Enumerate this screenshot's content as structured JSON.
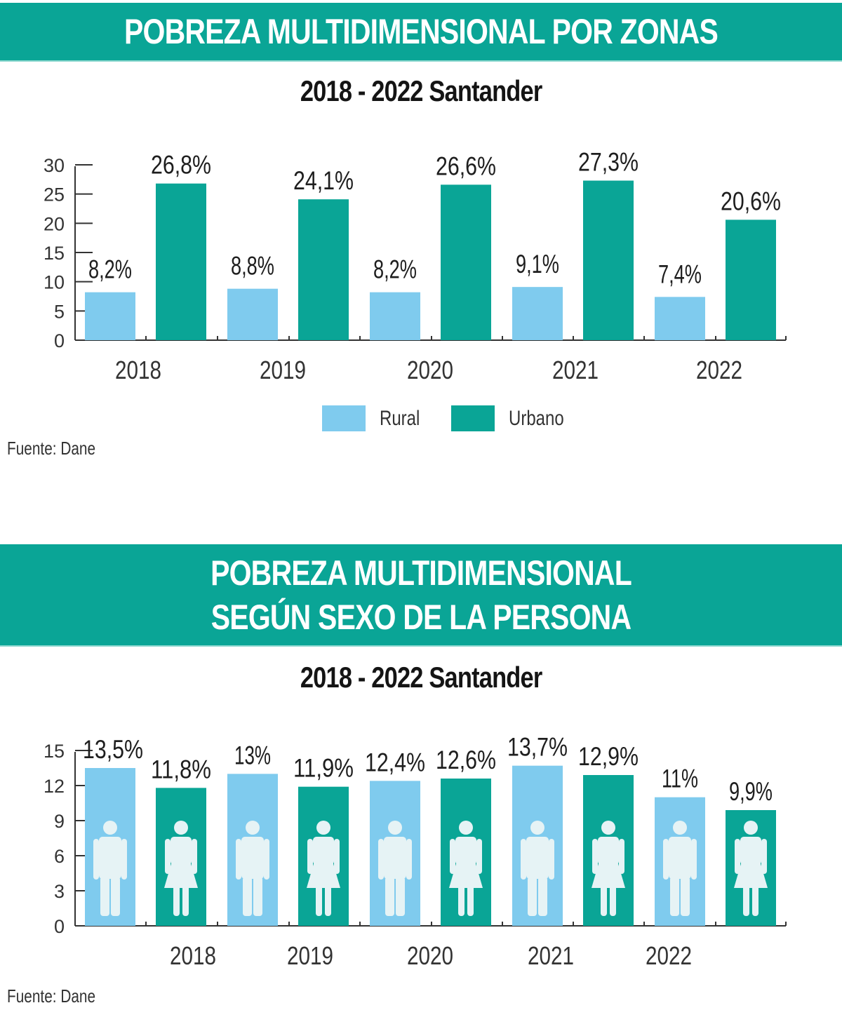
{
  "colors": {
    "banner": "#0aa596",
    "rural": "#7fcbee",
    "urbano": "#0aa596",
    "hombre": "#7fcbee",
    "mujer": "#0aa596",
    "icon_fill": "#e6f3f5",
    "axis": "#333333"
  },
  "section1": {
    "title": "POBREZA MULTIDIMENSIONAL POR ZONAS",
    "subtitle": "2018 - 2022 Santander",
    "source": "Fuente: Dane"
  },
  "section2": {
    "title_line1": "POBREZA MULTIDIMENSIONAL",
    "title_line2": "SEGÚN SEXO DE LA PERSONA",
    "subtitle": "2018 - 2022 Santander",
    "source": "Fuente: Dane"
  },
  "chart_data": [
    {
      "type": "bar",
      "title": "POBREZA MULTIDIMENSIONAL POR ZONAS",
      "subtitle": "2018 - 2022 Santander",
      "xlabel": "",
      "ylabel": "",
      "categories": [
        "2018",
        "2019",
        "2020",
        "2021",
        "2022"
      ],
      "ylim": [
        0,
        30
      ],
      "yticks": [
        "0",
        "5",
        "10",
        "15",
        "20",
        "25",
        "30"
      ],
      "grid": false,
      "legend_position": "bottom-center",
      "series": [
        {
          "name": "Rural",
          "values": [
            8.2,
            8.8,
            8.2,
            9.1,
            7.4
          ],
          "labels": [
            "8,2%",
            "8,8%",
            "8,2%",
            "9,1%",
            "7,4%"
          ]
        },
        {
          "name": "Urbano",
          "values": [
            26.8,
            24.1,
            26.6,
            27.3,
            20.6
          ],
          "labels": [
            "26,8%",
            "24,1%",
            "26,6%",
            "27,3%",
            "20,6%"
          ]
        }
      ]
    },
    {
      "type": "bar",
      "title": "POBREZA MULTIDIMENSIONAL SEGÚN SEXO DE LA PERSONA",
      "subtitle": "2018 - 2022 Santander",
      "xlabel": "",
      "ylabel": "",
      "categories": [
        "2018",
        "2019",
        "2020",
        "2021",
        "2022"
      ],
      "ylim": [
        0,
        15
      ],
      "yticks": [
        "0",
        "3",
        "6",
        "9",
        "12",
        "15"
      ],
      "grid": false,
      "legend_position": "none",
      "series": [
        {
          "name": "Hombre",
          "icon": "man-icon",
          "values": [
            13.5,
            13,
            12.4,
            13.7,
            11
          ],
          "labels": [
            "13,5%",
            "13%",
            "12,4%",
            "13,7%",
            "11%"
          ]
        },
        {
          "name": "Mujer",
          "icon": "woman-icon",
          "values": [
            11.8,
            11.9,
            12.6,
            12.9,
            9.9
          ],
          "labels": [
            "11,8%",
            "11,9%",
            "12,6%",
            "12,9%",
            "9,9%"
          ]
        }
      ]
    }
  ]
}
